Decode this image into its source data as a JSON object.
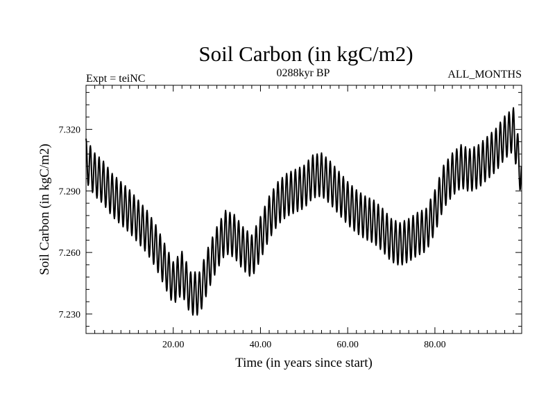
{
  "chart_data": {
    "type": "line",
    "title": "Soil Carbon (in kgC/m2)",
    "subtitle_left": "Expt = teiNC",
    "subtitle_center": "0288kyr BP",
    "subtitle_right": "ALL_MONTHS",
    "xlabel": "Time (in years since start)",
    "ylabel": "Soil Carbon (in kgC/m2)",
    "xlim": [
      0,
      99.9
    ],
    "ylim": [
      7.2205,
      7.3415
    ],
    "xticks": [
      20,
      40,
      60,
      80
    ],
    "xtick_labels": [
      "20.00",
      "40.00",
      "60.00",
      "80.00"
    ],
    "yticks": [
      7.23,
      7.26,
      7.29,
      7.32
    ],
    "ytick_labels": [
      "7.230",
      "7.260",
      "7.290",
      "7.320"
    ],
    "series": [
      {
        "name": "Soil Carbon",
        "description": "monthly values oscillating with an annual cycle around this yearly mean trend",
        "seasonal_amplitude": 0.0105,
        "x": [
          0,
          2,
          4,
          6,
          8,
          10,
          12,
          14,
          16,
          18,
          20,
          22,
          24,
          26,
          28,
          30,
          32,
          34,
          36,
          38,
          40,
          42,
          44,
          46,
          48,
          50,
          52,
          54,
          56,
          58,
          60,
          62,
          64,
          66,
          68,
          70,
          72,
          74,
          76,
          78,
          80,
          82,
          84,
          86,
          88,
          90,
          92,
          94,
          96,
          98,
          99.9
        ],
        "y": [
          7.305,
          7.298,
          7.294,
          7.288,
          7.284,
          7.28,
          7.275,
          7.27,
          7.263,
          7.254,
          7.245,
          7.25,
          7.24,
          7.24,
          7.252,
          7.262,
          7.27,
          7.268,
          7.262,
          7.258,
          7.267,
          7.277,
          7.284,
          7.288,
          7.29,
          7.292,
          7.297,
          7.298,
          7.294,
          7.289,
          7.284,
          7.28,
          7.277,
          7.275,
          7.271,
          7.266,
          7.264,
          7.266,
          7.269,
          7.271,
          7.28,
          7.292,
          7.298,
          7.302,
          7.3,
          7.302,
          7.306,
          7.31,
          7.316,
          7.32,
          7.296
        ]
      }
    ]
  }
}
